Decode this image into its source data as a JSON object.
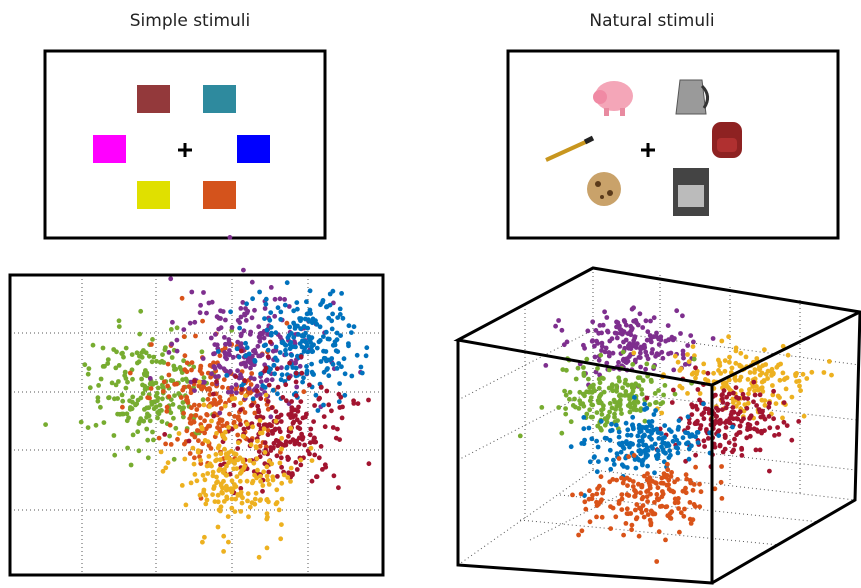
{
  "left_panel": {
    "title": "Simple stimuli"
  },
  "right_panel": {
    "title": "Natural stimuli"
  }
}
